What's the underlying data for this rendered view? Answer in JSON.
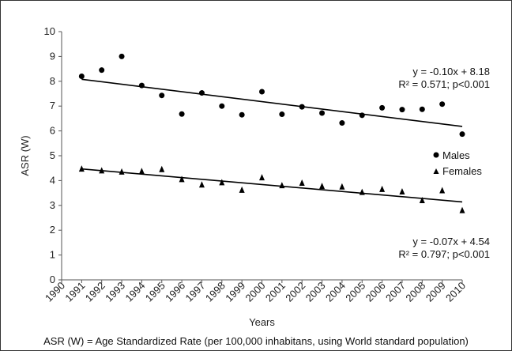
{
  "chart_data": {
    "type": "scatter",
    "xlabel": "Years",
    "ylabel": "ASR (W)",
    "xlim": [
      1990,
      2010
    ],
    "ylim": [
      0,
      10
    ],
    "x_ticks": [
      "1990",
      "1991",
      "1992",
      "1993",
      "1994",
      "1995",
      "1996",
      "1997",
      "1998",
      "1999",
      "2000",
      "2001",
      "2002",
      "2003",
      "2004",
      "2005",
      "2006",
      "2007",
      "2008",
      "2009",
      "2010"
    ],
    "y_ticks": [
      "0",
      "1",
      "2",
      "3",
      "4",
      "5",
      "6",
      "7",
      "8",
      "9",
      "10"
    ],
    "grid": false,
    "legend_position": "right",
    "series": [
      {
        "name": "Males",
        "marker": "circle",
        "x": [
          1991,
          1992,
          1993,
          1994,
          1995,
          1996,
          1997,
          1998,
          1999,
          2000,
          2001,
          2002,
          2003,
          2004,
          2005,
          2006,
          2007,
          2008,
          2009,
          2010
        ],
        "y": [
          8.2,
          8.45,
          9.0,
          7.83,
          7.43,
          6.68,
          7.53,
          7.0,
          6.65,
          7.58,
          6.67,
          6.97,
          6.72,
          6.32,
          6.63,
          6.93,
          6.86,
          6.87,
          7.08,
          5.87
        ],
        "trendline": {
          "slope": -0.1,
          "intercept": 8.18,
          "equation": "y = -0.10x + 8.18",
          "r2_text": "R² = 0.571; p<0.001"
        }
      },
      {
        "name": "Females",
        "marker": "triangle",
        "x": [
          1991,
          1992,
          1993,
          1994,
          1995,
          1996,
          1997,
          1998,
          1999,
          2000,
          2001,
          2002,
          2003,
          2004,
          2005,
          2006,
          2007,
          2008,
          2009,
          2010
        ],
        "y": [
          4.47,
          4.4,
          4.35,
          4.37,
          4.45,
          4.05,
          3.83,
          3.92,
          3.62,
          4.12,
          3.8,
          3.9,
          3.77,
          3.75,
          3.53,
          3.65,
          3.55,
          3.2,
          3.6,
          2.8
        ],
        "trendline": {
          "slope": -0.07,
          "intercept": 4.54,
          "equation": "y = -0.07x + 4.54",
          "r2_text": "R² = 0.797; p<0.001"
        }
      }
    ],
    "footnote": "ASR (W) = Age Standardized Rate (per 100,000 inhabitans, using World standard population)"
  },
  "colors": {
    "marker": "#000000",
    "line": "#000000",
    "axis": "#555555"
  }
}
